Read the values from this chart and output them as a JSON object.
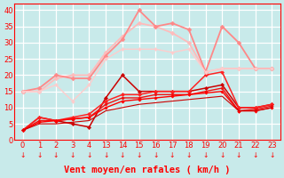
{
  "background_color": "#c8eaea",
  "grid_color": "#ffffff",
  "xlabel": "Vent moyen/en rafales ( km/h )",
  "ylim": [
    0,
    42
  ],
  "yticks": [
    0,
    5,
    10,
    15,
    20,
    25,
    30,
    35,
    40
  ],
  "tick_labels": [
    "0",
    "1",
    "2",
    "3",
    "4",
    "13",
    "14",
    "15",
    "16",
    "17",
    "18",
    "19",
    "20",
    "21",
    "22",
    "23"
  ],
  "n_xticks": 16,
  "lines": [
    {
      "y": [
        3,
        7,
        6,
        5,
        4,
        13,
        20,
        15,
        15,
        15,
        15,
        16,
        17,
        10,
        10,
        11
      ],
      "color": "#cc0000",
      "lw": 1.1,
      "marker": "D",
      "ms": 2.2
    },
    {
      "y": [
        3,
        7,
        6,
        7,
        8,
        12,
        14,
        14,
        15,
        15,
        15,
        20,
        21,
        10,
        10,
        11
      ],
      "color": "#ff2222",
      "lw": 1.1,
      "marker": "D",
      "ms": 2.2
    },
    {
      "y": [
        3,
        6,
        6,
        6.5,
        7,
        11,
        13,
        13,
        14,
        14,
        14,
        15,
        16,
        9,
        9.5,
        10.5
      ],
      "color": "#ee1111",
      "lw": 1.0,
      "marker": "D",
      "ms": 1.8
    },
    {
      "y": [
        3,
        5.5,
        6,
        6.5,
        7,
        10,
        12,
        12.5,
        13,
        13.5,
        14,
        14.5,
        15,
        9,
        9,
        10
      ],
      "color": "#ff0000",
      "lw": 1.0,
      "marker": "D",
      "ms": 1.8
    },
    {
      "y": [
        3,
        5,
        5,
        5.5,
        6,
        9,
        10,
        11,
        11.5,
        12,
        12.5,
        13,
        13.5,
        9,
        9,
        10
      ],
      "color": "#cc0000",
      "lw": 0.8,
      "marker": null,
      "ms": 0
    },
    {
      "y": [
        15,
        15,
        19,
        20,
        20,
        27,
        32,
        36,
        35,
        33,
        30,
        21,
        22,
        22,
        22,
        22
      ],
      "color": "#ffbbbb",
      "lw": 1.3,
      "marker": "D",
      "ms": 2.5
    },
    {
      "y": [
        15,
        16,
        20,
        19,
        19,
        26,
        31,
        40,
        35,
        36,
        34,
        21,
        35,
        30,
        22,
        22
      ],
      "color": "#ff8888",
      "lw": 1.3,
      "marker": "D",
      "ms": 2.5
    },
    {
      "y": [
        15,
        15,
        17,
        12,
        17,
        25,
        28,
        28,
        28,
        27,
        28,
        21,
        22,
        22,
        22,
        22
      ],
      "color": "#ffcccc",
      "lw": 1.0,
      "marker": "D",
      "ms": 2.0
    }
  ],
  "tick_arrow_color": "#ff0000",
  "tick_fontsize": 6.0,
  "xlabel_fontsize": 7.5
}
